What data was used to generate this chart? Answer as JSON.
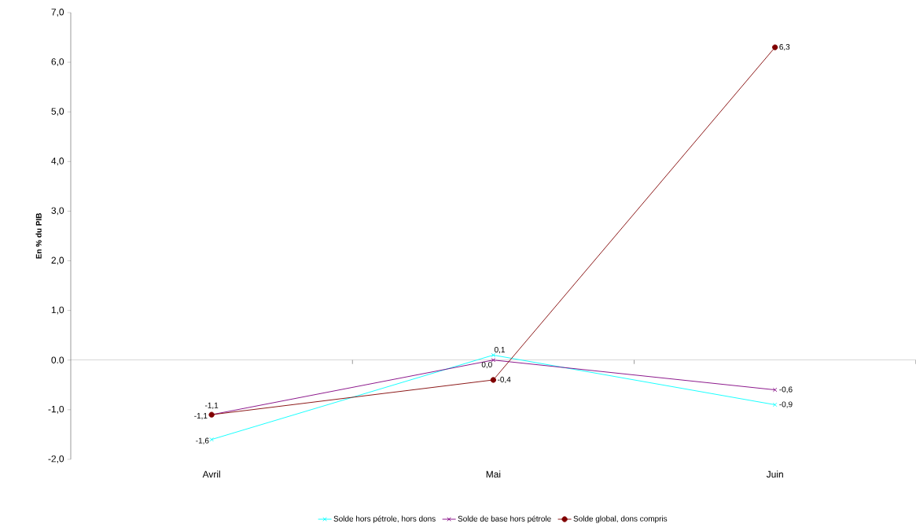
{
  "chart_data": {
    "type": "line",
    "ylabel": "En % du PIB",
    "categories": [
      "Avril",
      "Mai",
      "Juin"
    ],
    "series": [
      {
        "name": "Solde hors pétrole, hors dons",
        "color": "#00ffff",
        "marker": "cross",
        "values": [
          -1.6,
          0.1,
          -0.9
        ],
        "value_labels": [
          "-1,6",
          "0,1",
          "-0,9"
        ]
      },
      {
        "name": "Solde de base hors pétrole",
        "color": "#800080",
        "marker": "cross",
        "values": [
          -1.1,
          0.0,
          -0.6
        ],
        "value_labels": [
          "-1,1",
          "0,0",
          "-0,6"
        ]
      },
      {
        "name": "Solde global, dons compris",
        "color": "#800000",
        "marker": "circle",
        "values": [
          -1.1,
          -0.4,
          6.3
        ],
        "value_labels": [
          "-1,1",
          "-0,4",
          "6,3"
        ]
      }
    ],
    "ylim": [
      -2,
      7
    ],
    "yticks": [
      {
        "value": -2,
        "label": "-2,0"
      },
      {
        "value": -1,
        "label": "-1,0"
      },
      {
        "value": 0,
        "label": "0.0"
      },
      {
        "value": 1,
        "label": "1,0"
      },
      {
        "value": 2,
        "label": "2,0"
      },
      {
        "value": 3,
        "label": "3,0"
      },
      {
        "value": 4,
        "label": "4,0"
      },
      {
        "value": 5,
        "label": "5,0"
      },
      {
        "value": 6,
        "label": "6,0"
      },
      {
        "value": 7,
        "label": "7,0"
      }
    ],
    "ref_lines": [
      {
        "axis": "y",
        "value": 0,
        "color": "#808080"
      }
    ],
    "grid": false,
    "legend": "bottom"
  }
}
